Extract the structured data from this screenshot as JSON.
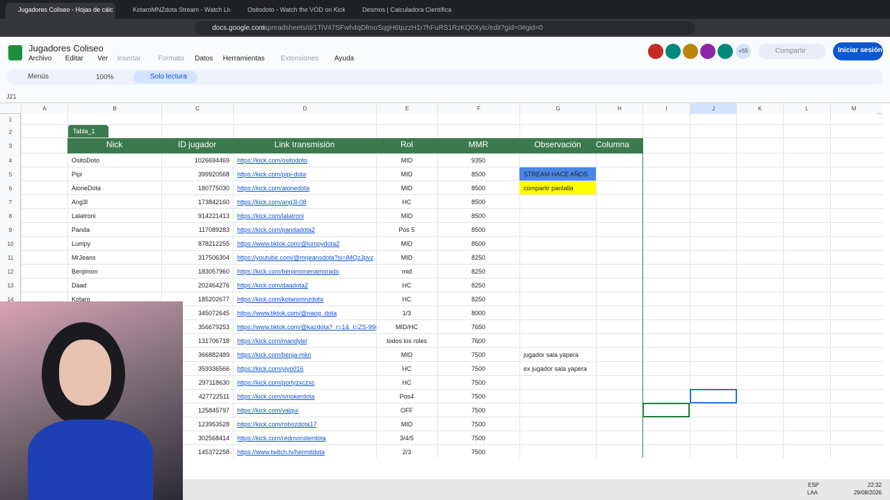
{
  "browser": {
    "tabs": [
      "Jugadores Coliseo - Hojas de cálc",
      "KotaroMNZdota Stream - Watch Live",
      "Ositodoto - Watch the VOD on Kick",
      "Desmos | Calculadora Científica"
    ],
    "url_host": "docs.google.com",
    "url_path": "/spreadsheets/d/1TiV47SFwh4qDfmoSqgH6tpzzH1r7hFuRS1RzKQ0Xylc/edit?gid=0#gid=0"
  },
  "header": {
    "title": "Jugadores Coliseo",
    "menus": [
      "Archivo",
      "Editar",
      "Ver",
      "Insertar",
      "Formato",
      "Datos",
      "Herramientas",
      "Extensiones",
      "Ayuda"
    ],
    "more_users": "+55",
    "share": "Compartir",
    "sign_in": "Iniciar sesión"
  },
  "toolbar": {
    "search": "Menús",
    "zoom": "100%",
    "mode": "Solo lectura"
  },
  "formula_bar": {
    "cell": "J21"
  },
  "grid": {
    "columns": [
      "A",
      "B",
      "C",
      "D",
      "E",
      "F",
      "G",
      "H",
      "I",
      "J",
      "K",
      "L",
      "M"
    ],
    "row_numbers": [
      "1",
      "2",
      "3",
      "4",
      "5",
      "6",
      "7",
      "8",
      "9",
      "10",
      "11",
      "12",
      "13",
      "14"
    ]
  },
  "table": {
    "name": "Tabla_1",
    "headers": [
      "Nick",
      "ID jugador",
      "Link transmisión",
      "Rol",
      "MMR",
      "Observación",
      "Columna "
    ],
    "rows": [
      {
        "nick": "OsitoDoto",
        "id": "1026694469",
        "link": "https://kick.com/ositodoto",
        "rol": "MID",
        "mmr": "9350"
      },
      {
        "nick": "Pipi",
        "id": "399920568",
        "link": "https://kick.com/pipi-dota",
        "rol": "MID",
        "mmr": "8500",
        "obs": "STREAM HACE AÑOS",
        "obs_color": "#4a86e8"
      },
      {
        "nick": "AloneDota",
        "id": "180775030",
        "link": "https://kick.com/alonedota",
        "rol": "MID",
        "mmr": "8500",
        "obs": "compartir pantalla",
        "obs_color": "#ffff00"
      },
      {
        "nick": "Ang3l",
        "id": "173842160",
        "link": "https://kick.com/ang3l-08",
        "rol": "HC",
        "mmr": "8500"
      },
      {
        "nick": "Lalatroni",
        "id": "914221413",
        "link": "https://kick.com/lalatroni",
        "rol": "MID",
        "mmr": "8500"
      },
      {
        "nick": "Panda",
        "id": "117089283",
        "link": "https://kick.com/pandadota2",
        "rol": "Pos 5",
        "mmr": "8500"
      },
      {
        "nick": "Lumpy",
        "id": "878212255",
        "link": "https://www.tiktok.com/@lumpydota2",
        "rol": "MID",
        "mmr": "8500"
      },
      {
        "nick": "MrJeans",
        "id": "317506304",
        "link": "https://youtube.com/@mrjeansdota?si=iMQzJpvz",
        "rol": "MID",
        "mmr": "8250"
      },
      {
        "nick": "Benjimon",
        "id": "183057960",
        "link": "https://kick.com/benjimonenamorado",
        "rol": "mid",
        "mmr": "8250"
      },
      {
        "nick": "Daad",
        "id": "202464276",
        "link": "https://kick.com/daadota2",
        "rol": "HC",
        "mmr": "8250"
      },
      {
        "nick": "Kotaro",
        "id": "185202677",
        "link": "https://kick.com/kotaromnzdota",
        "rol": "HC",
        "mmr": "8250"
      },
      {
        "id": "345072645",
        "link": "https://www.tiktok.com/@naog_dota",
        "rol": "1/3",
        "mmr": "8000"
      },
      {
        "id": "356679253",
        "link": "https://www.tiktok.com/@kazdota?_r=1&_t=ZS-99(",
        "rol": "MID/HC",
        "mmr": "7650"
      },
      {
        "id": "131706718",
        "link": "https://kick.com/mandylel",
        "rol": "todos los roles",
        "mmr": "7600"
      },
      {
        "id": "366882489",
        "link": "https://kick.com/benja-mkn",
        "rol": "MID",
        "mmr": "7500",
        "obs": "jugador sala yapera"
      },
      {
        "id": "359336566",
        "link": "https://kick.com/yiyo016",
        "rol": "HC",
        "mmr": "7500",
        "obs": "ex jugador sala yapera"
      },
      {
        "id": "297118630",
        "link": "https://kick.com/portyzxczxc",
        "rol": "HC",
        "mmr": "7500"
      },
      {
        "id": "427722511",
        "link": "https://kick.com/smokerdota",
        "rol": "Pos4",
        "mmr": "7500"
      },
      {
        "id": "125845797",
        "link": "https://kick.com/valqui",
        "rol": "OFF",
        "mmr": "7500"
      },
      {
        "id": "123953528",
        "link": "https://kick.com/robozdota17",
        "rol": "MID",
        "mmr": "7500"
      },
      {
        "id": "302568414",
        "link": "https://kick.com/redmonsterdota",
        "rol": "3/4/5",
        "mmr": "7500"
      },
      {
        "id": "145372258",
        "link": "https://www.twitch.tv/hermitdota",
        "rol": "2/3",
        "mmr": "7500"
      }
    ]
  },
  "taskbar": {
    "lang": "ESP",
    "layout": "LAA",
    "time": "22:32",
    "date": "29/08/2026"
  }
}
